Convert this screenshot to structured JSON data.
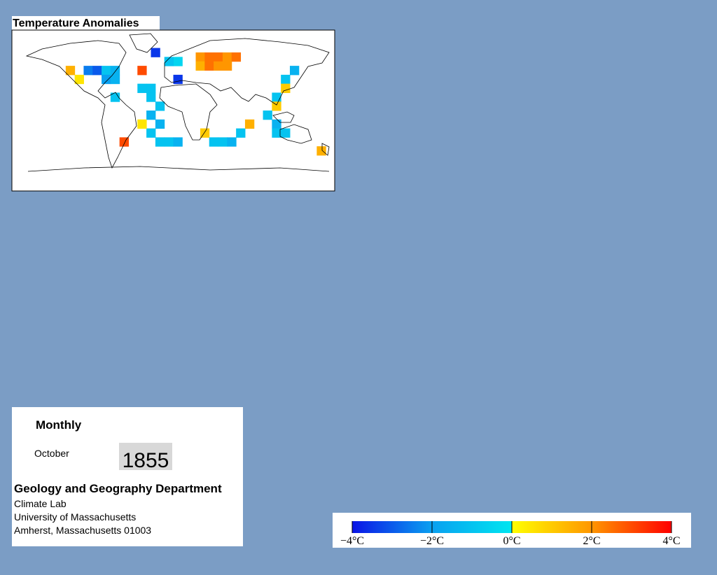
{
  "title": "Temperature Anomalies",
  "map": {
    "lonlim": [
      -180,
      180
    ],
    "latlim": [
      -90,
      90
    ],
    "cell_size": 10,
    "cells": [
      {
        "lon": -20,
        "lat": 65,
        "value": -3.5
      },
      {
        "lon": 30,
        "lat": 60,
        "value": 2
      },
      {
        "lon": 40,
        "lat": 60,
        "value": 2.5
      },
      {
        "lon": 50,
        "lat": 60,
        "value": 2.5
      },
      {
        "lon": 60,
        "lat": 60,
        "value": 2
      },
      {
        "lon": 70,
        "lat": 60,
        "value": 2.5
      },
      {
        "lon": 30,
        "lat": 50,
        "value": 1.5
      },
      {
        "lon": 40,
        "lat": 50,
        "value": 2.5
      },
      {
        "lon": 50,
        "lat": 50,
        "value": 2
      },
      {
        "lon": 60,
        "lat": 50,
        "value": 2
      },
      {
        "lon": -35,
        "lat": 45,
        "value": 3
      },
      {
        "lon": 5,
        "lat": 35,
        "value": -3.5
      },
      {
        "lon": 5,
        "lat": 55,
        "value": -0.5
      },
      {
        "lon": -5,
        "lat": 55,
        "value": -1
      },
      {
        "lon": -115,
        "lat": 45,
        "value": 1.5
      },
      {
        "lon": -95,
        "lat": 45,
        "value": -2.5
      },
      {
        "lon": -85,
        "lat": 45,
        "value": -3
      },
      {
        "lon": -75,
        "lat": 45,
        "value": -1
      },
      {
        "lon": -65,
        "lat": 45,
        "value": -1.5
      },
      {
        "lon": -105,
        "lat": 35,
        "value": 0.5
      },
      {
        "lon": -75,
        "lat": 35,
        "value": -2
      },
      {
        "lon": -65,
        "lat": 35,
        "value": -1.5
      },
      {
        "lon": -65,
        "lat": 15,
        "value": -1
      },
      {
        "lon": -35,
        "lat": 25,
        "value": -1
      },
      {
        "lon": -25,
        "lat": 25,
        "value": -1
      },
      {
        "lon": -25,
        "lat": 15,
        "value": -1
      },
      {
        "lon": -15,
        "lat": 5,
        "value": -1
      },
      {
        "lon": -25,
        "lat": -5,
        "value": -1.5
      },
      {
        "lon": -15,
        "lat": -15,
        "value": -1.5
      },
      {
        "lon": -25,
        "lat": -25,
        "value": -1
      },
      {
        "lon": -5,
        "lat": -35,
        "value": -1
      },
      {
        "lon": 5,
        "lat": -35,
        "value": -1.5
      },
      {
        "lon": -15,
        "lat": -35,
        "value": -1
      },
      {
        "lon": -55,
        "lat": -35,
        "value": 3
      },
      {
        "lon": -35,
        "lat": -15,
        "value": 0.5
      },
      {
        "lon": 35,
        "lat": -25,
        "value": 1
      },
      {
        "lon": 45,
        "lat": -35,
        "value": -1
      },
      {
        "lon": 55,
        "lat": -35,
        "value": -1
      },
      {
        "lon": 65,
        "lat": -35,
        "value": -1.5
      },
      {
        "lon": 75,
        "lat": -25,
        "value": -1
      },
      {
        "lon": 85,
        "lat": -15,
        "value": 1.5
      },
      {
        "lon": 125,
        "lat": 35,
        "value": -1
      },
      {
        "lon": 125,
        "lat": 25,
        "value": 1
      },
      {
        "lon": 115,
        "lat": 15,
        "value": -1
      },
      {
        "lon": 115,
        "lat": 5,
        "value": 1
      },
      {
        "lon": 105,
        "lat": -5,
        "value": -1
      },
      {
        "lon": 115,
        "lat": -15,
        "value": -1.5
      },
      {
        "lon": 115,
        "lat": -25,
        "value": -1
      },
      {
        "lon": 125,
        "lat": -25,
        "value": -1
      },
      {
        "lon": 135,
        "lat": 45,
        "value": -1.5
      },
      {
        "lon": 165,
        "lat": -45,
        "value": 1.5
      }
    ]
  },
  "info": {
    "period": "Monthly",
    "month": "October",
    "year": "1855",
    "department": "Geology and Geography Department",
    "lab": "Climate Lab",
    "university": "University of Massachusetts",
    "address": "Amherst, Massachusetts 01003"
  },
  "colorbar": {
    "clim": [
      -4,
      4
    ],
    "ticks": [
      {
        "value": -4,
        "label": "−4°C"
      },
      {
        "value": -2,
        "label": "−2°C"
      },
      {
        "value": 0,
        "label": "0°C"
      },
      {
        "value": 2,
        "label": "2°C"
      },
      {
        "value": 4,
        "label": "4°C"
      }
    ]
  }
}
